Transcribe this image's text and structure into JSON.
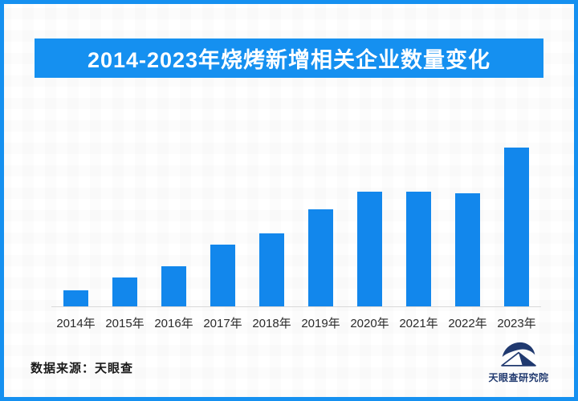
{
  "title_banner": {
    "text": "2014-2023年烧烤新增相关企业数量变化",
    "background_color": "#1590F0",
    "text_color": "#FFFFFF"
  },
  "chart_data": {
    "type": "bar",
    "title": "2014-2023年烧烤新增相关企业数量变化",
    "categories": [
      "2014年",
      "2015年",
      "2016年",
      "2017年",
      "2018年",
      "2019年",
      "2020年",
      "2021年",
      "2022年",
      "2023年"
    ],
    "values": [
      10,
      18,
      25,
      39,
      46,
      61,
      72,
      72,
      71,
      100
    ],
    "unit": "relative height, % of tallest bar (no numeric axis or data labels shown)",
    "xlabel": "",
    "ylabel": "",
    "ylim": [
      0,
      100
    ],
    "grid": false,
    "legend": false,
    "bar_color": "#1287EC",
    "axis_line_color": "#D9D9D9"
  },
  "footer": {
    "source_text": "数据来源：天眼查"
  },
  "logo": {
    "text": "天眼查研究院",
    "icon": "tianyancha-eye-logo",
    "color": "#20396F"
  },
  "colors": {
    "accent_blue": "#1590F0",
    "bar_blue": "#1287EC",
    "border_blue": "#1590F0",
    "axis_line": "#D9D9D9",
    "label_text": "#2B2B2B",
    "logo_navy": "#20396F"
  }
}
